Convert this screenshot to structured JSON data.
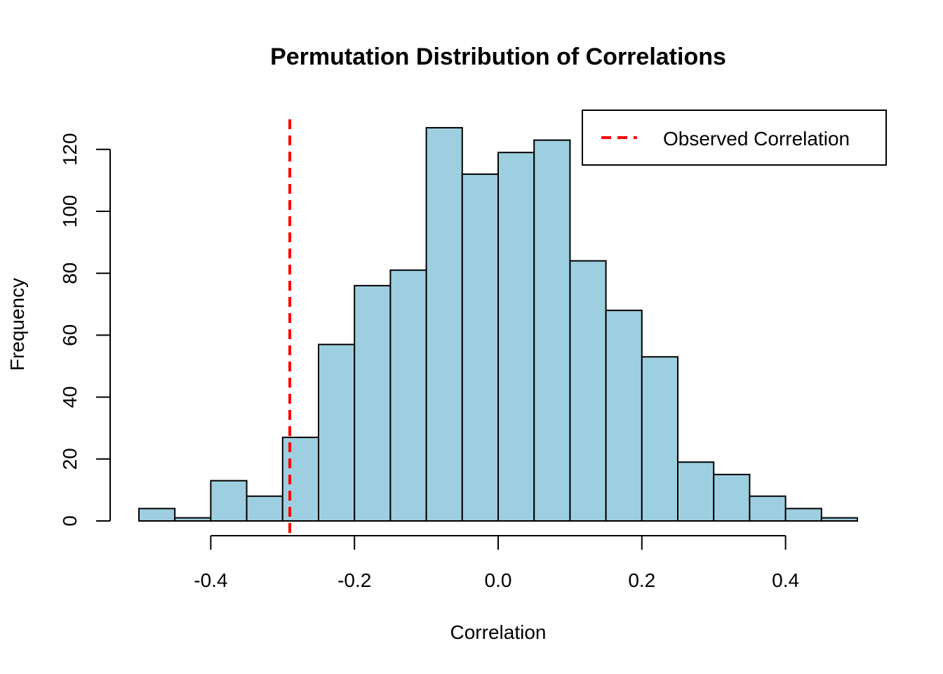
{
  "chart_data": {
    "type": "bar",
    "title": "Permutation Distribution of Correlations",
    "xlabel": "Correlation",
    "ylabel": "Frequency",
    "bin_edges": [
      -0.5,
      -0.45,
      -0.4,
      -0.35,
      -0.3,
      -0.25,
      -0.2,
      -0.15,
      -0.1,
      -0.05,
      0.0,
      0.05,
      0.1,
      0.15,
      0.2,
      0.25,
      0.3,
      0.35,
      0.4,
      0.45,
      0.5
    ],
    "values": [
      4,
      1,
      13,
      8,
      27,
      57,
      76,
      81,
      127,
      112,
      119,
      123,
      84,
      68,
      53,
      19,
      15,
      8,
      4,
      1
    ],
    "bar_color": "#9ecfe0",
    "xlim": [
      -0.5,
      0.5
    ],
    "ylim": [
      0,
      130
    ],
    "x_ticks": [
      -0.4,
      -0.2,
      0.0,
      0.2,
      0.4
    ],
    "x_tick_labels": [
      "-0.4",
      "-0.2",
      "0.0",
      "0.2",
      "0.4"
    ],
    "y_ticks": [
      0,
      20,
      40,
      60,
      80,
      100,
      120
    ],
    "y_tick_labels": [
      "0",
      "20",
      "40",
      "60",
      "80",
      "100",
      "120"
    ],
    "observed_line": {
      "x": -0.29,
      "color": "#ff0000",
      "style": "dashed"
    },
    "legend": {
      "position": "top-right",
      "entries": [
        {
          "label": "Observed Correlation",
          "color": "#ff0000",
          "style": "dashed"
        }
      ]
    },
    "grid": false
  }
}
